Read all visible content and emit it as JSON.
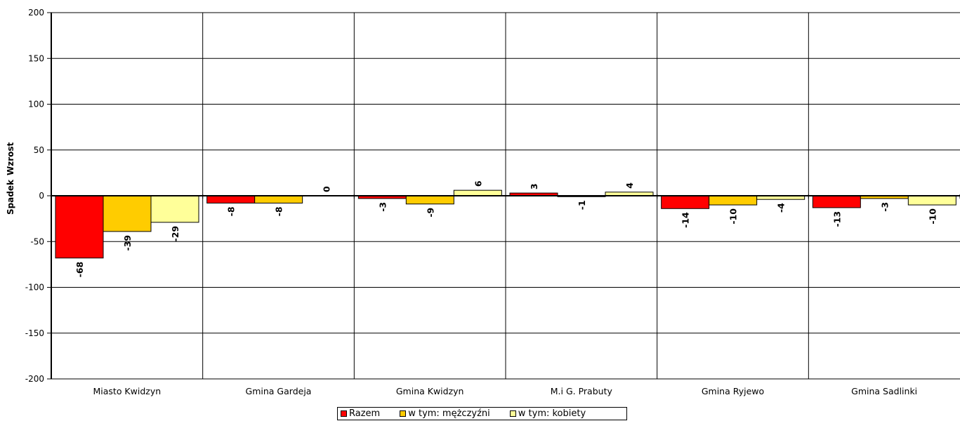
{
  "chart_data": {
    "type": "bar",
    "categories": [
      "Miasto Kwidzyn",
      "Gmina Gardeja",
      "Gmina Kwidzyn",
      "M.i G. Prabuty",
      "Gmina Ryjewo",
      "Gmina Sadlinki"
    ],
    "series": [
      {
        "name": "Razem",
        "color": "#ff0000",
        "values": [
          -68,
          -8,
          -3,
          3,
          -14,
          -13
        ]
      },
      {
        "name": "w tym: mężczyźni",
        "color": "#ffcc00",
        "values": [
          -39,
          -8,
          -9,
          -1,
          -10,
          -3
        ]
      },
      {
        "name": "w tym: kobiety",
        "color": "#ffff99",
        "values": [
          -29,
          0,
          6,
          4,
          -4,
          -10
        ]
      }
    ],
    "ylim": [
      -200,
      200
    ],
    "yticks": [
      200,
      150,
      100,
      50,
      0,
      -50,
      -100,
      -150,
      -200
    ],
    "ylabel_upper": "Wzrost",
    "ylabel_lower": "Spadek",
    "grid": true,
    "legend_position": "bottom-center"
  }
}
